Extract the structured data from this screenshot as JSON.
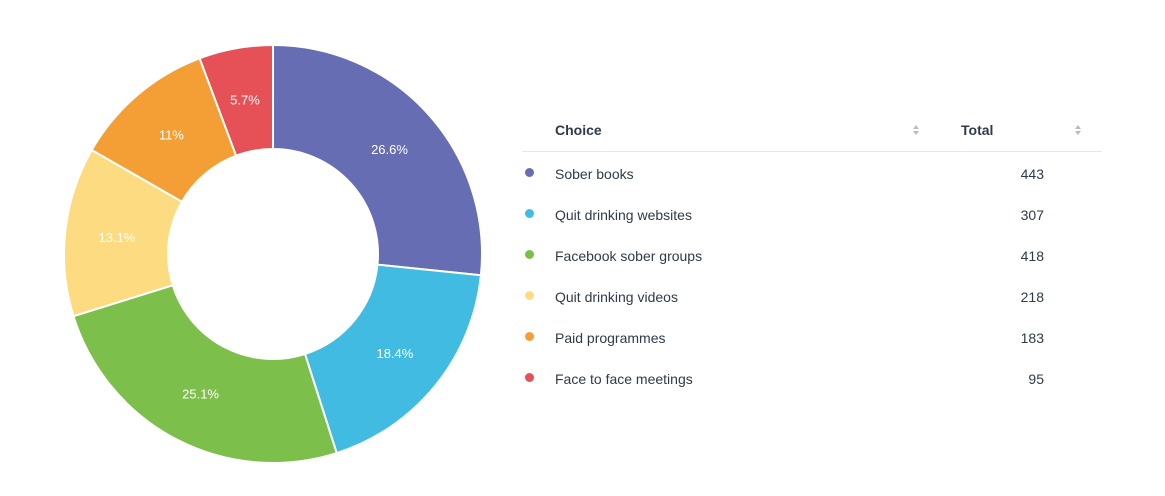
{
  "chart_data": {
    "type": "pie",
    "categories": [
      "Sober books",
      "Quit drinking websites",
      "Facebook sober groups",
      "Quit drinking videos",
      "Paid programmes",
      "Face to face meetings"
    ],
    "values": [
      443,
      307,
      418,
      218,
      183,
      95
    ],
    "percent_labels": [
      "26.6%",
      "18.4%",
      "25.1%",
      "13.1%",
      "11%",
      "5.7%"
    ],
    "colors": [
      "#666db2",
      "#42bbe3",
      "#7cbf4a",
      "#fddc81",
      "#f49f35",
      "#e55157"
    ],
    "donut": true,
    "title": "",
    "legend_position": "right"
  },
  "table": {
    "headers": {
      "choice": "Choice",
      "total": "Total"
    },
    "rows": [
      {
        "label": "Sober books",
        "value": "443",
        "color": "#666db2"
      },
      {
        "label": "Quit drinking websites",
        "value": "307",
        "color": "#42bbe3"
      },
      {
        "label": "Facebook sober groups",
        "value": "418",
        "color": "#7cbf4a"
      },
      {
        "label": "Quit drinking videos",
        "value": "218",
        "color": "#fddc81"
      },
      {
        "label": "Paid programmes",
        "value": "183",
        "color": "#f49f35"
      },
      {
        "label": "Face to face meetings",
        "value": "95",
        "color": "#e55157"
      }
    ]
  }
}
